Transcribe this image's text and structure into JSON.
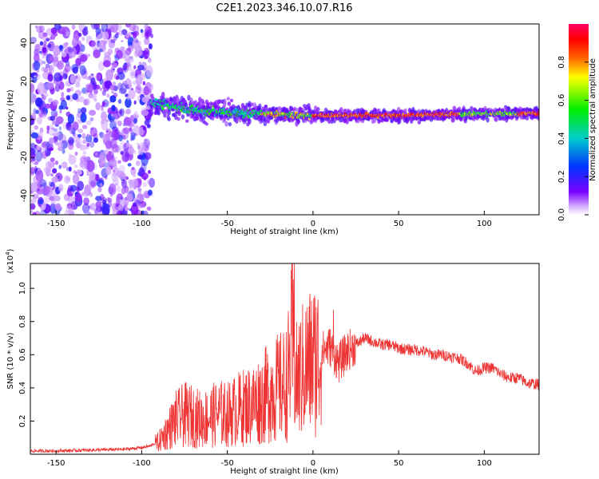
{
  "title": "C2E1.2023.346.10.07.R16",
  "colors": {
    "snr_line": "#ee3333",
    "scatter_points": "#7b2cff",
    "colormap": [
      "#ffffff",
      "#7b00ff",
      "#0033ff",
      "#00cccc",
      "#00ee00",
      "#ffff00",
      "#ff6600",
      "#ff0000",
      "#ff0066"
    ]
  },
  "chart_data": [
    {
      "type": "heatmap",
      "title": "",
      "xlabel": "Height of straight line (km)",
      "ylabel": "Frequency (Hz)",
      "xlim": [
        -165,
        132
      ],
      "ylim": [
        -50,
        50
      ],
      "xticks": [
        -150,
        -100,
        -50,
        0,
        50,
        100
      ],
      "yticks": [
        -40,
        -20,
        0,
        20,
        40
      ],
      "grid": false,
      "regions": [
        {
          "name": "",
          "x_range": [
            -165,
            -94
          ],
          "description_type": "scattered noise"
        },
        {
          "name": "",
          "x_range": [
            -94,
            132
          ],
          "center_freq": [
            [
              -90,
              8
            ],
            [
              -60,
              4
            ],
            [
              -30,
              3
            ],
            [
              0,
              2
            ],
            [
              50,
              2
            ],
            [
              100,
              3
            ],
            [
              130,
              3
            ]
          ]
        }
      ],
      "colorbar": {
        "label": "Normalized spectral amplitude",
        "range": [
          0.0,
          1.0
        ],
        "ticks": [
          0.0,
          0.2,
          0.4,
          0.6,
          0.8
        ]
      }
    },
    {
      "type": "line",
      "title": "",
      "xlabel": "Height of straight line (km)",
      "ylabel": "SNR (10 * v/v)",
      "scale_note": "(x10",
      "scale_exp": "4",
      "xlim": [
        -165,
        132
      ],
      "ylim": [
        0.0,
        1.15
      ],
      "xticks": [
        -150,
        -100,
        -50,
        0,
        50,
        100
      ],
      "yticks": [
        0.2,
        0.4,
        0.6,
        0.8,
        1.0
      ],
      "ytick_labels": [
        "0.2",
        "0.4",
        "0.6",
        "0.8",
        "1.0"
      ],
      "grid": false,
      "series": [
        {
          "name": "",
          "x": [
            -165,
            -150,
            -130,
            -110,
            -100,
            -95,
            -90,
            -85,
            -80,
            -75,
            -70,
            -65,
            -60,
            -55,
            -50,
            -45,
            -40,
            -35,
            -30,
            -25,
            -20,
            -15,
            -12,
            -10,
            -5,
            0,
            5,
            10,
            15,
            20,
            25,
            30,
            35,
            40,
            45,
            50,
            55,
            60,
            65,
            70,
            75,
            80,
            85,
            90,
            95,
            100,
            105,
            110,
            115,
            120,
            125,
            132
          ],
          "y": [
            0.02,
            0.02,
            0.025,
            0.03,
            0.04,
            0.05,
            0.08,
            0.15,
            0.22,
            0.25,
            0.24,
            0.22,
            0.24,
            0.26,
            0.25,
            0.28,
            0.3,
            0.32,
            0.35,
            0.4,
            0.42,
            0.45,
            0.7,
            0.45,
            0.55,
            0.6,
            0.62,
            0.65,
            0.55,
            0.62,
            0.66,
            0.7,
            0.68,
            0.66,
            0.66,
            0.64,
            0.63,
            0.63,
            0.62,
            0.6,
            0.6,
            0.59,
            0.58,
            0.55,
            0.5,
            0.52,
            0.52,
            0.48,
            0.46,
            0.46,
            0.43,
            0.42
          ]
        }
      ],
      "annotations": [
        {
          "x": -11,
          "y": 1.15,
          "text": ""
        },
        {
          "x": 12,
          "y": 0.87,
          "text": ""
        }
      ]
    }
  ]
}
